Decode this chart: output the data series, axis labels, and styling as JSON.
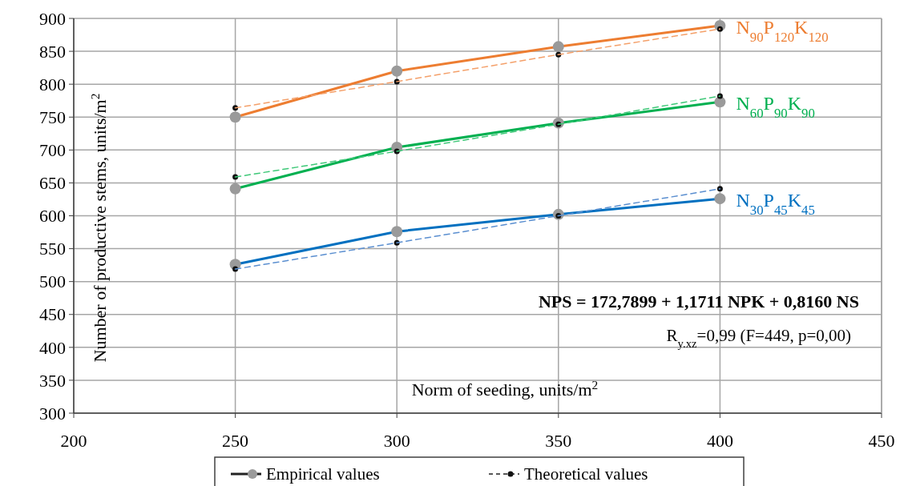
{
  "chart_data": {
    "type": "line",
    "xlabel": "Norm of seeding, units/m$^{2}$",
    "ylabel": "Number of productive stems, units/m$^{2}$",
    "x": [
      250,
      300,
      350,
      400
    ],
    "xlim": [
      200,
      450
    ],
    "xticks": [
      200,
      250,
      300,
      350,
      400,
      450
    ],
    "ylim": [
      300,
      900
    ],
    "yticks": [
      300,
      350,
      400,
      450,
      500,
      550,
      600,
      650,
      700,
      750,
      800,
      850,
      900
    ],
    "grid": true,
    "series": [
      {
        "color": "#ed7d31",
        "values": [
          750,
          820,
          857,
          889
        ],
        "line_style": "solid",
        "marker": "circle"
      },
      {
        "color": "#f4a06a",
        "values": [
          764,
          804,
          845,
          884
        ],
        "line_style": "dashed",
        "marker": "circle"
      },
      {
        "color": "#00b050",
        "values": [
          641,
          704,
          741,
          773
        ],
        "line_style": "solid",
        "marker": "circle"
      },
      {
        "color": "#3fc878",
        "values": [
          659,
          698,
          739,
          782
        ],
        "line_style": "dashed",
        "marker": "circle"
      },
      {
        "color": "#0070c0",
        "values": [
          526,
          576,
          602,
          626
        ],
        "line_style": "solid",
        "marker": "circle"
      },
      {
        "color": "#5b8fd0",
        "values": [
          519,
          559,
          600,
          641
        ],
        "line_style": "dashed",
        "marker": "circle"
      }
    ],
    "annotations": [
      "NPS = 172,7899 + 1,1711 NPK + 0,8160 NS",
      "R$_{y.xz}$=0,99 (F=449, p=0,00)",
      "Empirical values",
      "Theoretical values",
      "N$_{90}$P$_{120}$K$_{120}$",
      "N$_{60}$P$_{90}$K$_{90}$",
      "N$_{30}$P$_{45}$K$_{45}$"
    ]
  }
}
